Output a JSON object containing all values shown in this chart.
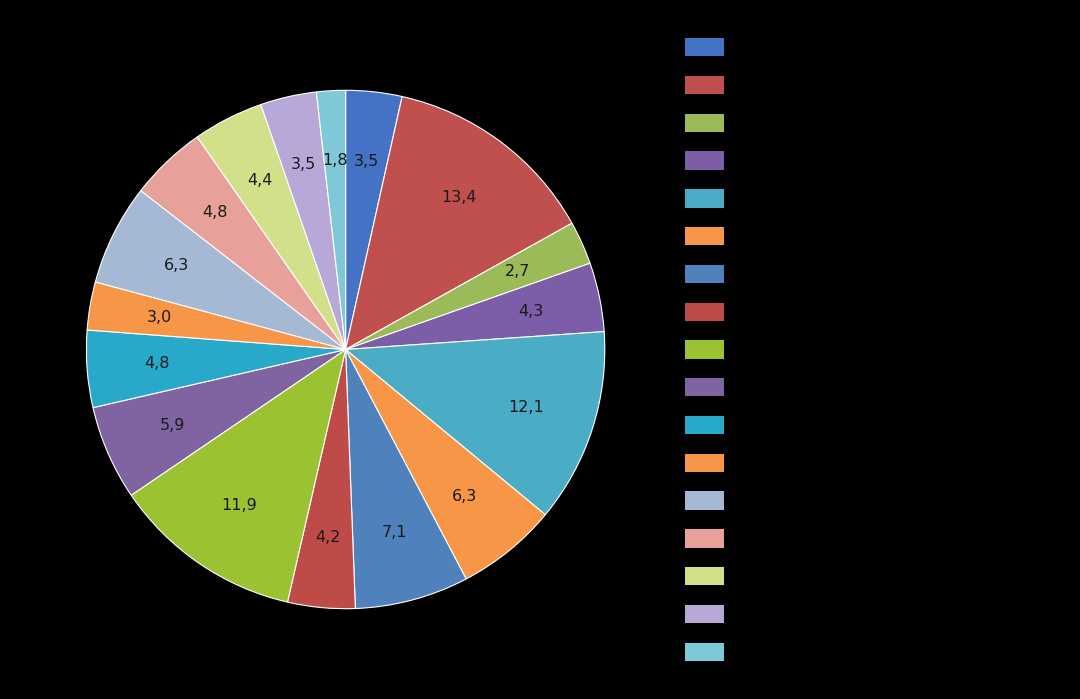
{
  "values": [
    3.5,
    13.4,
    2.7,
    4.3,
    12.1,
    6.3,
    7.1,
    4.2,
    11.9,
    5.9,
    4.8,
    3.0,
    6.3,
    4.8,
    4.4,
    3.5,
    1.8
  ],
  "colors": [
    "#4472C4",
    "#C0504D",
    "#9BBB59",
    "#7B5EA7",
    "#4BACC6",
    "#F79646",
    "#4F81BD",
    "#BE4B48",
    "#9AC231",
    "#8064A2",
    "#29A9C9",
    "#F79646",
    "#A5B8D4",
    "#E8A09A",
    "#D2E08A",
    "#B8A8D8",
    "#7EC8D8"
  ],
  "labels": [
    "3,5",
    "13,4",
    "2,7",
    "4,3",
    "12,1",
    "6,3",
    "7,1",
    "4,2",
    "11,9",
    "5,9",
    "4,8",
    "3,0",
    "6,3",
    "4,8",
    "4,4",
    "3,5",
    "1,8"
  ],
  "background_color": "#000000",
  "label_color": "#1a1a1a",
  "startangle": 90,
  "figsize": [
    10.8,
    6.99
  ]
}
